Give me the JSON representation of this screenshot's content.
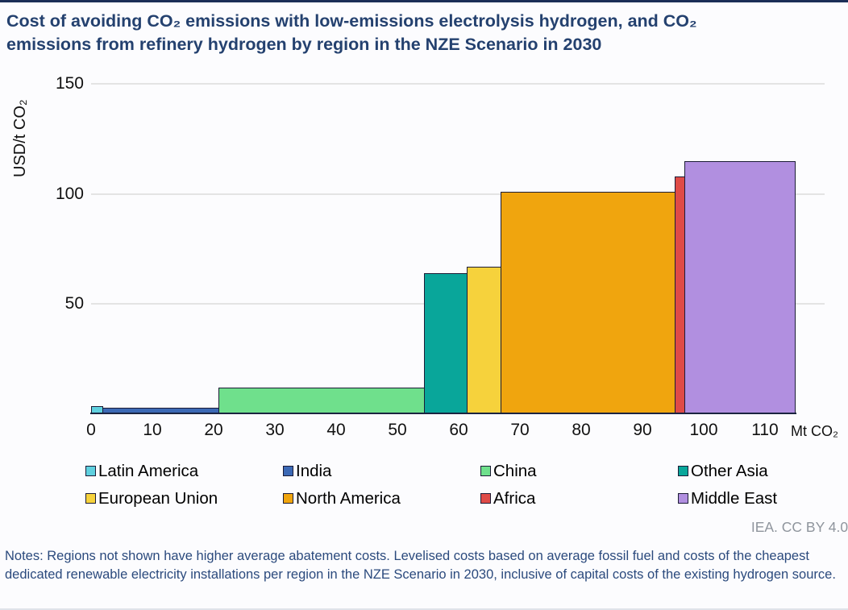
{
  "page": {
    "background": "#fcfcfe",
    "accent_navy": "#24416f",
    "top_border_color": "#1b2e57"
  },
  "header": {
    "title_line1": "Cost of avoiding CO₂ emissions with low-emissions electrolysis hydrogen, and CO₂",
    "title_line2": "emissions from refinery hydrogen by region in the NZE Scenario in 2030"
  },
  "chart_data": {
    "type": "bar",
    "subtype": "abatement-cost-curve",
    "title": "Cost of avoiding CO₂ emissions with low-emissions electrolysis hydrogen, and CO₂ emissions from refinery hydrogen by region in the NZE Scenario in 2030",
    "ylabel": "USD/t CO₂",
    "x_unit_label": "Mt CO₂",
    "xlim": [
      0,
      115
    ],
    "ylim": [
      0,
      150
    ],
    "x_ticks": [
      0,
      10,
      20,
      30,
      40,
      50,
      60,
      70,
      80,
      90,
      100,
      110
    ],
    "y_ticks": [
      50,
      100,
      150
    ],
    "grid": "horizontal",
    "legend_position": "bottom",
    "bar_border_color": "#1c1c36",
    "gridline_color": "#e4e4e4",
    "series": [
      {
        "name": "Latin America",
        "x_start": 0,
        "x_end": 2,
        "cost_usd_per_t": 3.5,
        "color": "#5FD0DF"
      },
      {
        "name": "India",
        "x_start": 2,
        "x_end": 21,
        "cost_usd_per_t": 3,
        "color": "#3C69B5"
      },
      {
        "name": "China",
        "x_start": 21,
        "x_end": 54.5,
        "cost_usd_per_t": 12,
        "color": "#6FE08C"
      },
      {
        "name": "Other Asia",
        "x_start": 54.5,
        "x_end": 61.5,
        "cost_usd_per_t": 64,
        "color": "#09A69A"
      },
      {
        "name": "European Union",
        "x_start": 61.5,
        "x_end": 67,
        "cost_usd_per_t": 67,
        "color": "#F6D23C"
      },
      {
        "name": "North America",
        "x_start": 67,
        "x_end": 95.5,
        "cost_usd_per_t": 101,
        "color": "#F0A50E"
      },
      {
        "name": "Africa",
        "x_start": 95.5,
        "x_end": 97,
        "cost_usd_per_t": 108,
        "color": "#DF4B47"
      },
      {
        "name": "Middle East",
        "x_start": 97,
        "x_end": 115,
        "cost_usd_per_t": 115,
        "color": "#B18FE0"
      }
    ]
  },
  "footer": {
    "attribution": "IEA. CC BY 4.0.",
    "notes": "Notes: Regions not shown have higher average abatement costs. Levelised costs based on average fossil fuel and costs of the cheapest dedicated renewable electricity installations per region in the NZE Scenario in 2030, inclusive of capital costs of the existing hydrogen source."
  }
}
